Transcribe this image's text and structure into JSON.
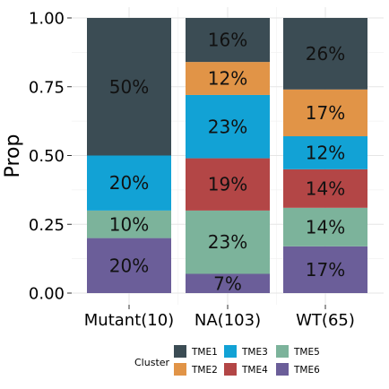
{
  "chart_data": {
    "type": "bar",
    "stacked": true,
    "ylabel": "Prop",
    "ylim": [
      0,
      1
    ],
    "yticks": [
      "0.00",
      "0.25",
      "0.50",
      "0.75",
      "1.00"
    ],
    "categories": [
      "Mutant(10)",
      "NA(103)",
      "WT(65)"
    ],
    "grid": true,
    "legend_position": "bottom",
    "legend_title": "Cluster",
    "series": [
      {
        "name": "TME6",
        "color": "#6b5e99",
        "values": [
          0.2,
          0.07,
          0.17
        ],
        "labels": [
          "20%",
          "7%",
          "17%"
        ]
      },
      {
        "name": "TME5",
        "color": "#7cb39b",
        "values": [
          0.1,
          0.23,
          0.14
        ],
        "labels": [
          "10%",
          "23%",
          "14%"
        ]
      },
      {
        "name": "TME4",
        "color": "#b34646",
        "values": [
          0.0,
          0.19,
          0.14
        ],
        "labels": [
          "",
          "19%",
          "14%"
        ]
      },
      {
        "name": "TME3",
        "color": "#12a2d5",
        "values": [
          0.2,
          0.23,
          0.12
        ],
        "labels": [
          "20%",
          "23%",
          "12%"
        ]
      },
      {
        "name": "TME2",
        "color": "#e19447",
        "values": [
          0.0,
          0.12,
          0.17
        ],
        "labels": [
          "",
          "12%",
          "17%"
        ]
      },
      {
        "name": "TME1",
        "color": "#3b4c54",
        "values": [
          0.5,
          0.16,
          0.26
        ],
        "labels": [
          "50%",
          "16%",
          "26%"
        ]
      }
    ],
    "legend_order": [
      "TME1",
      "TME2",
      "TME3",
      "TME4",
      "TME5",
      "TME6"
    ]
  }
}
